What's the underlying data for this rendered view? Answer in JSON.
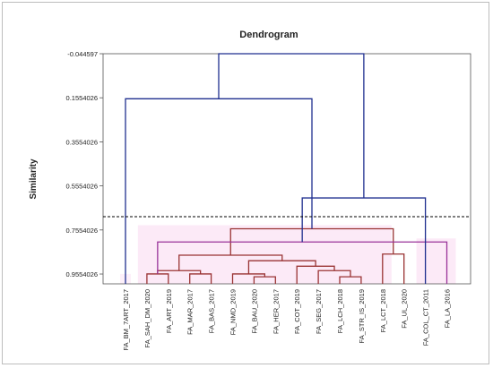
{
  "chart_data": {
    "type": "dendrogram",
    "title": "Dendrogram",
    "ylabel": "Similarity",
    "xlabel": "",
    "y_ticks": [
      "-0.044597",
      "0.1554026",
      "0.3554026",
      "0.5554026",
      "0.7554026",
      "0.9554026"
    ],
    "y_tick_values": [
      -0.044597,
      0.1554026,
      0.3554026,
      0.5554026,
      0.7554026,
      0.9554026
    ],
    "ylim": [
      -0.044597,
      1.0
    ],
    "cut_line": 0.695,
    "leaves": [
      "FA_BM_7ART_2017",
      "FA_SAH_DM_2020",
      "FA_ART_2019",
      "FA_MAR_2017",
      "FA_BAS_2017",
      "FA_NMD_2019",
      "FA_BAU_2020",
      "FA_HER_2017",
      "FA_COT_2019",
      "FA_SEG_2017",
      "FA_LCH_2018",
      "FA_STR_IS_2019",
      "FA_LCT_2018",
      "FA_UL_2020",
      "FA_COL_CT_2011",
      "FA_LA_2016"
    ],
    "merges": [
      {
        "a": 1,
        "b": 2,
        "height": 0.955,
        "color": "#993333"
      },
      {
        "a": 3,
        "b": 4,
        "height": 0.955,
        "color": "#993333"
      },
      {
        "a": 6,
        "b": 7,
        "height": 0.968,
        "color": "#993333"
      },
      {
        "a": 10,
        "b": 11,
        "height": 0.968,
        "color": "#993333"
      },
      {
        "a": 5,
        "b": 18,
        "height": 0.955,
        "color": "#993333"
      },
      {
        "a": 9,
        "b": 19,
        "height": 0.94,
        "color": "#993333"
      },
      {
        "a": 16,
        "b": 17,
        "height": 0.94,
        "color": "#993333"
      },
      {
        "a": 8,
        "b": 21,
        "height": 0.92,
        "color": "#993333"
      },
      {
        "a": 20,
        "b": 23,
        "height": 0.895,
        "color": "#993333"
      },
      {
        "a": 22,
        "b": 24,
        "height": 0.87,
        "color": "#993333"
      },
      {
        "a": 12,
        "b": 13,
        "height": 0.865,
        "color": "#993333"
      },
      {
        "a": 25,
        "b": 26,
        "height": 0.75,
        "color": "#993333"
      },
      {
        "a": 15,
        "b": 16,
        "height": 0.81,
        "color": "#993399"
      },
      {
        "a": 14,
        "b": 28,
        "height": 0.61,
        "color": "#1f2f8f"
      },
      {
        "a": 0,
        "b": 27,
        "height": 0.16,
        "color": "#1f2f8f"
      },
      {
        "a": 30,
        "b": 29,
        "height": -0.044597,
        "color": "#1f2f8f"
      }
    ],
    "grid": false,
    "legend": "none"
  },
  "colors": {
    "blue": "#1f2f8f",
    "red": "#993333",
    "purple": "#993399",
    "highlight": "#fbe6f6"
  }
}
